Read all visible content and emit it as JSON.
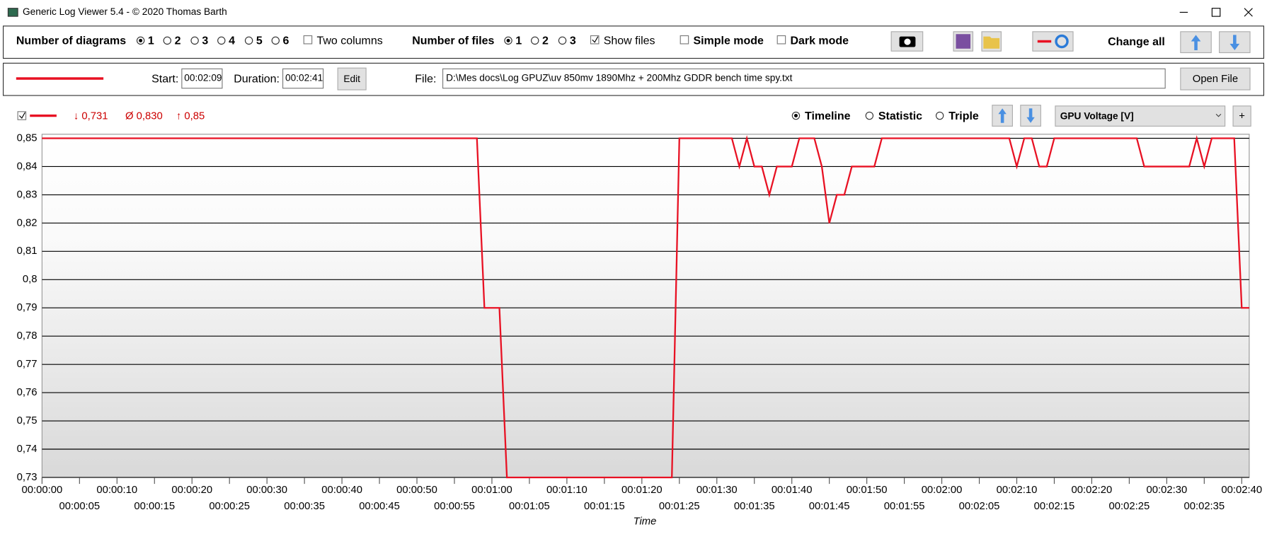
{
  "window": {
    "title": "Generic Log Viewer 5.4 - © 2020 Thomas Barth"
  },
  "toolbar": {
    "diagrams_label": "Number of diagrams",
    "diagram_options": [
      "1",
      "2",
      "3",
      "4",
      "5",
      "6"
    ],
    "two_columns": "Two columns",
    "files_label": "Number of files",
    "file_options": [
      "1",
      "2",
      "3"
    ],
    "show_files": "Show files",
    "simple_mode": "Simple mode",
    "dark_mode": "Dark mode",
    "change_all": "Change all"
  },
  "file_bar": {
    "start_label": "Start:",
    "start": "00:02:09",
    "duration_label": "Duration:",
    "duration": "00:02:41",
    "edit": "Edit",
    "file_label": "File:",
    "file_path": "D:\\Mes docs\\Log GPUZ\\uv 850mv 1890Mhz + 200Mhz GDDR bench time spy.txt",
    "open_file": "Open File"
  },
  "diagram_header": {
    "min": "↓ 0,731",
    "avg": "Ø 0,830",
    "max": "↑ 0,85",
    "modes": [
      "Timeline",
      "Statistic",
      "Triple"
    ],
    "channel": "GPU Voltage [V]",
    "add": "+"
  },
  "chart_data": {
    "type": "line",
    "x_label": "Time",
    "x": [
      0,
      58,
      59,
      61,
      62,
      84,
      85,
      92,
      93,
      94,
      95,
      96,
      97,
      98,
      100,
      101,
      103,
      104,
      105,
      106,
      107,
      108,
      111,
      112,
      129,
      130,
      131,
      132,
      133,
      134,
      135,
      146,
      147,
      153,
      154,
      155,
      156,
      159,
      160,
      161
    ],
    "series": [
      {
        "color": "#e81123",
        "values": [
          0.85,
          0.85,
          0.79,
          0.79,
          0.73,
          0.73,
          0.85,
          0.85,
          0.84,
          0.85,
          0.84,
          0.84,
          0.83,
          0.84,
          0.84,
          0.85,
          0.85,
          0.84,
          0.82,
          0.83,
          0.83,
          0.84,
          0.84,
          0.85,
          0.85,
          0.84,
          0.85,
          0.85,
          0.84,
          0.84,
          0.85,
          0.85,
          0.84,
          0.84,
          0.85,
          0.84,
          0.85,
          0.85,
          0.79,
          0.79
        ]
      }
    ],
    "xlim": [
      0,
      161
    ],
    "xticks": [
      {
        "value": 0,
        "label": "00:00:00"
      },
      {
        "value": 5,
        "label": "00:00:05"
      },
      {
        "value": 10,
        "label": "00:00:10"
      },
      {
        "value": 15,
        "label": "00:00:15"
      },
      {
        "value": 20,
        "label": "00:00:20"
      },
      {
        "value": 25,
        "label": "00:00:25"
      },
      {
        "value": 30,
        "label": "00:00:30"
      },
      {
        "value": 35,
        "label": "00:00:35"
      },
      {
        "value": 40,
        "label": "00:00:40"
      },
      {
        "value": 45,
        "label": "00:00:45"
      },
      {
        "value": 50,
        "label": "00:00:50"
      },
      {
        "value": 55,
        "label": "00:00:55"
      },
      {
        "value": 60,
        "label": "00:01:00"
      },
      {
        "value": 65,
        "label": "00:01:05"
      },
      {
        "value": 70,
        "label": "00:01:10"
      },
      {
        "value": 75,
        "label": "00:01:15"
      },
      {
        "value": 80,
        "label": "00:01:20"
      },
      {
        "value": 85,
        "label": "00:01:25"
      },
      {
        "value": 90,
        "label": "00:01:30"
      },
      {
        "value": 95,
        "label": "00:01:35"
      },
      {
        "value": 100,
        "label": "00:01:40"
      },
      {
        "value": 105,
        "label": "00:01:45"
      },
      {
        "value": 110,
        "label": "00:01:50"
      },
      {
        "value": 115,
        "label": "00:01:55"
      },
      {
        "value": 120,
        "label": "00:02:00"
      },
      {
        "value": 125,
        "label": "00:02:05"
      },
      {
        "value": 130,
        "label": "00:02:10"
      },
      {
        "value": 135,
        "label": "00:02:15"
      },
      {
        "value": 140,
        "label": "00:02:20"
      },
      {
        "value": 145,
        "label": "00:02:25"
      },
      {
        "value": 150,
        "label": "00:02:30"
      },
      {
        "value": 155,
        "label": "00:02:35"
      },
      {
        "value": 160,
        "label": "00:02:40"
      }
    ],
    "ylim": [
      0.73,
      0.85
    ],
    "yticks": [
      {
        "value": 0.73,
        "label": "0,73"
      },
      {
        "value": 0.74,
        "label": "0,74"
      },
      {
        "value": 0.75,
        "label": "0,75"
      },
      {
        "value": 0.76,
        "label": "0,76"
      },
      {
        "value": 0.77,
        "label": "0,77"
      },
      {
        "value": 0.78,
        "label": "0,78"
      },
      {
        "value": 0.79,
        "label": "0,79"
      },
      {
        "value": 0.8,
        "label": "0,8"
      },
      {
        "value": 0.81,
        "label": "0,81"
      },
      {
        "value": 0.82,
        "label": "0,82"
      },
      {
        "value": 0.83,
        "label": "0,83"
      },
      {
        "value": 0.84,
        "label": "0,84"
      },
      {
        "value": 0.85,
        "label": "0,85"
      }
    ],
    "grid": true
  }
}
